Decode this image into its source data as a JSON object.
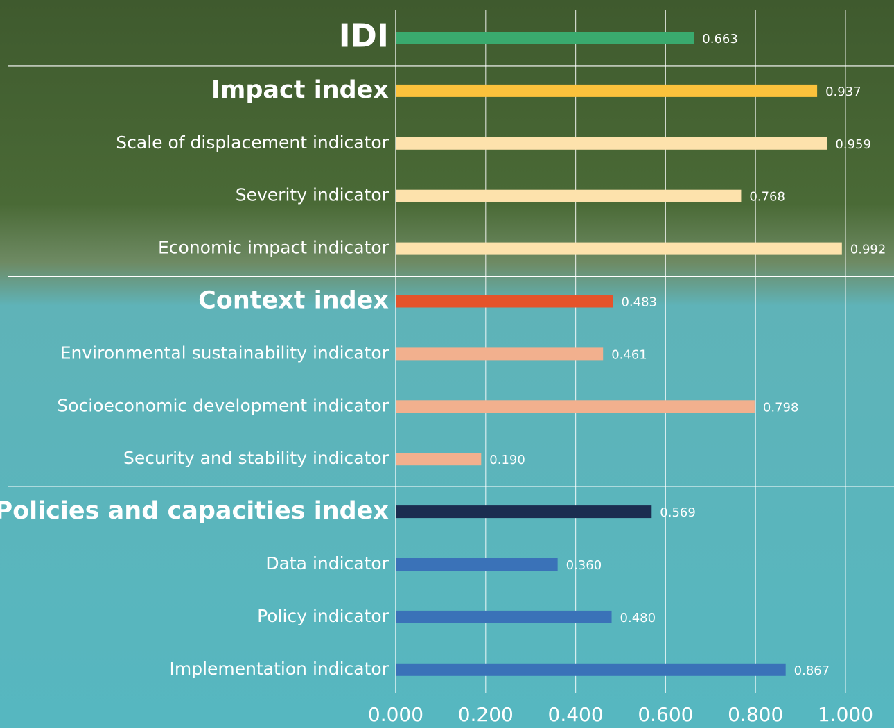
{
  "chart_data": {
    "type": "bar",
    "orientation": "horizontal",
    "categories": [
      "IDI",
      "Impact index",
      "Scale of displacement indicator",
      "Severity indicator",
      "Economic impact indicator",
      "Context index",
      "Environmental sustainability indicator",
      "Socioeconomic development indicator",
      "Security and stability indicator",
      "Policies and capacities index",
      "Data indicator",
      "Policy indicator",
      "Implementation indicator"
    ],
    "values": [
      0.663,
      0.937,
      0.959,
      0.768,
      0.992,
      0.483,
      0.461,
      0.798,
      0.19,
      0.569,
      0.36,
      0.48,
      0.867
    ],
    "value_labels": [
      "0.663",
      "0.937",
      "0.959",
      "0.768",
      "0.992",
      "0.483",
      "0.461",
      "0.798",
      "0.190",
      "0.569",
      "0.360",
      "0.480",
      "0.867"
    ],
    "colors": [
      "#3aaa6e",
      "#fbc23c",
      "#fde2ac",
      "#fde2ac",
      "#fde2ac",
      "#e5532b",
      "#f2b08e",
      "#f2b08e",
      "#f2b08e",
      "#1b2d50",
      "#3a72b8",
      "#3a72b8",
      "#3a72b8"
    ],
    "highlight": [
      true,
      true,
      false,
      false,
      false,
      true,
      false,
      false,
      false,
      true,
      false,
      false,
      false
    ],
    "xlim": [
      0,
      1
    ],
    "xticks": [
      {
        "value": 0,
        "label": "0.000"
      },
      {
        "value": 0.2,
        "label": "0.200"
      },
      {
        "value": 0.4,
        "label": "0.400"
      },
      {
        "value": 0.6,
        "label": "0.600"
      },
      {
        "value": 0.8,
        "label": "0.800"
      },
      {
        "value": 1,
        "label": "1.000"
      }
    ],
    "grid": true
  }
}
